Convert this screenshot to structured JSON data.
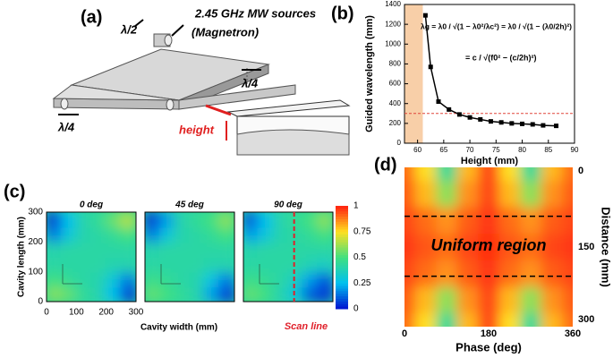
{
  "diagram": {
    "label": "(a)",
    "source_label": "2.45 GHz MW sources",
    "source_sub": "(Magnetron)",
    "lambda_half": "λ/2",
    "lambda_quarter_right": "λ/4",
    "lambda_quarter_left": "λ/4",
    "height_label": "height"
  },
  "chart_data": [
    {
      "type": "line",
      "label": "(b)",
      "xlabel": "Height (mm)",
      "ylabel": "Guided wavelength (mm)",
      "x": [
        61.5,
        62.5,
        64,
        66,
        68,
        70,
        72,
        74,
        76,
        78,
        80,
        82,
        84,
        86.5
      ],
      "values": [
        1290,
        770,
        420,
        340,
        290,
        260,
        240,
        220,
        210,
        200,
        195,
        190,
        180,
        175
      ],
      "color": "#000000",
      "xlim": [
        57.5,
        90
      ],
      "xticks": [
        60,
        65,
        70,
        75,
        80,
        85,
        90
      ],
      "ylim": [
        0,
        1400
      ],
      "yticks": [
        0,
        200,
        400,
        600,
        800,
        1000,
        1200,
        1400
      ],
      "reference_line": 300,
      "reference_color": "#e0453a",
      "shaded_until": 61,
      "shade_color": "#f8cfa8",
      "equations": [
        "λg = λ0 / √(1 − λ0²/λc²) = λ0 / √(1 − (λ0/2h)²)",
        "= c / √(f0² − (c/2h)²)"
      ]
    },
    {
      "type": "heatmap_panels",
      "label": "(c)",
      "xlabel": "Cavity width (mm)",
      "ylabel": "Cavity length (mm)",
      "x": [
        25,
        75,
        125,
        175,
        225,
        275
      ],
      "y": [
        25,
        75,
        125,
        175,
        225,
        275
      ],
      "xlim": [
        0,
        300
      ],
      "ylim": [
        0,
        300
      ],
      "xticks": [
        0,
        100,
        200,
        300
      ],
      "yticks": [
        0,
        100,
        200,
        300
      ],
      "panels": [
        {
          "title": "0 deg",
          "values": [
            [
              0.6,
              0.55,
              0.45,
              0.4,
              0.25,
              0.05
            ],
            [
              0.5,
              0.45,
              0.42,
              0.4,
              0.3,
              0.15
            ],
            [
              0.42,
              0.42,
              0.42,
              0.42,
              0.4,
              0.4
            ],
            [
              0.4,
              0.42,
              0.42,
              0.42,
              0.42,
              0.42
            ],
            [
              0.15,
              0.3,
              0.4,
              0.42,
              0.45,
              0.5
            ],
            [
              0.05,
              0.25,
              0.4,
              0.45,
              0.55,
              0.65
            ]
          ]
        },
        {
          "title": "45 deg",
          "values": [
            [
              0.55,
              0.5,
              0.45,
              0.4,
              0.2,
              0.05
            ],
            [
              0.48,
              0.45,
              0.42,
              0.4,
              0.28,
              0.15
            ],
            [
              0.42,
              0.42,
              0.42,
              0.42,
              0.4,
              0.4
            ],
            [
              0.4,
              0.42,
              0.42,
              0.42,
              0.42,
              0.42
            ],
            [
              0.15,
              0.3,
              0.4,
              0.42,
              0.45,
              0.5
            ],
            [
              0.05,
              0.2,
              0.4,
              0.45,
              0.5,
              0.6
            ]
          ]
        },
        {
          "title": "90 deg",
          "values": [
            [
              0.55,
              0.5,
              0.4,
              0.3,
              0.1,
              0.05
            ],
            [
              0.48,
              0.45,
              0.42,
              0.35,
              0.2,
              0.1
            ],
            [
              0.42,
              0.42,
              0.42,
              0.42,
              0.38,
              0.35
            ],
            [
              0.4,
              0.42,
              0.42,
              0.42,
              0.42,
              0.42
            ],
            [
              0.2,
              0.3,
              0.4,
              0.42,
              0.45,
              0.5
            ],
            [
              0.1,
              0.25,
              0.4,
              0.45,
              0.5,
              0.6
            ]
          ]
        }
      ],
      "colorbar_ticks": [
        0,
        0.25,
        0.5,
        0.75,
        1
      ],
      "colorscale": [
        "#0010d0",
        "#00c0f0",
        "#40e080",
        "#ffe020",
        "#ff2010"
      ],
      "scan_line": 170,
      "scan_label": "Scan line",
      "scan_color": "#e0202a"
    },
    {
      "type": "heatmap",
      "label": "(d)",
      "xlabel": "Phase (deg)",
      "ylabel": "Distance (mm)",
      "x": [
        0,
        45,
        90,
        135,
        180,
        225,
        270,
        315,
        360
      ],
      "y": [
        0,
        50,
        100,
        150,
        200,
        250,
        300
      ],
      "values": [
        [
          0.9,
          0.75,
          0.45,
          0.8,
          0.95,
          0.75,
          0.45,
          0.8,
          0.9
        ],
        [
          0.92,
          0.8,
          0.6,
          0.85,
          0.95,
          0.8,
          0.6,
          0.85,
          0.92
        ],
        [
          0.95,
          0.9,
          0.85,
          0.92,
          0.97,
          0.9,
          0.85,
          0.92,
          0.95
        ],
        [
          0.97,
          0.93,
          0.9,
          0.95,
          0.98,
          0.93,
          0.9,
          0.95,
          0.97
        ],
        [
          0.95,
          0.9,
          0.85,
          0.92,
          0.97,
          0.9,
          0.85,
          0.92,
          0.95
        ],
        [
          0.92,
          0.8,
          0.6,
          0.85,
          0.95,
          0.8,
          0.6,
          0.85,
          0.92
        ],
        [
          0.9,
          0.75,
          0.45,
          0.8,
          0.95,
          0.75,
          0.45,
          0.8,
          0.9
        ]
      ],
      "xlim": [
        0,
        360
      ],
      "ylim": [
        0,
        300
      ],
      "xticks": [
        0,
        180,
        360
      ],
      "yticks": [
        0,
        150,
        300
      ],
      "annotation": "Uniform region",
      "region": [
        92,
        205
      ]
    }
  ]
}
